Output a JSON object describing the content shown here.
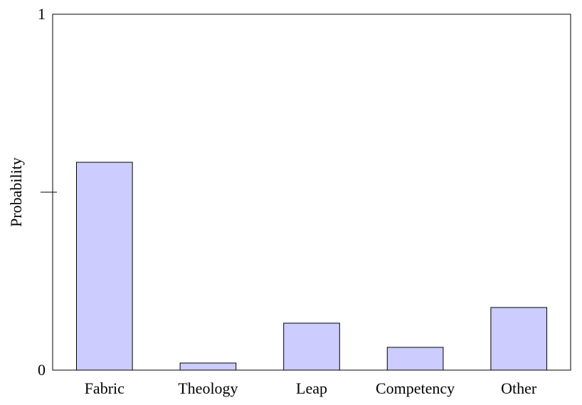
{
  "chart_data": {
    "type": "bar",
    "y_label": "Probability",
    "categories": [
      "Fabric",
      "Theology",
      "Leap",
      "Competency",
      "Other"
    ],
    "values": [
      0.584,
      0.02,
      0.132,
      0.064,
      0.176
    ],
    "color": "#ccccff",
    "ylim": [
      0,
      1
    ],
    "yticks": [
      0,
      1
    ],
    "y_minor_ticks": [
      0.5
    ],
    "grid": false
  }
}
